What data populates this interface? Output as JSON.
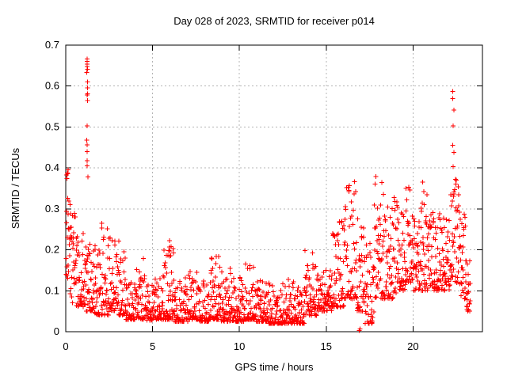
{
  "page": {
    "background": "#ffffff"
  },
  "chart_data": {
    "type": "scatter",
    "title": "Day 028 of 2023, SRMTID for receiver p014",
    "xlabel": "GPS time / hours",
    "ylabel": "SRMTID / TECUs",
    "xlim": [
      0,
      24
    ],
    "ylim": [
      0,
      0.7
    ],
    "xticks": [
      0,
      5,
      10,
      15,
      20
    ],
    "yticks": [
      0,
      0.1,
      0.2,
      0.3,
      0.4,
      0.5,
      0.6,
      0.7
    ],
    "grid": true,
    "legend": "none",
    "marker": "plus",
    "marker_size_px": 7,
    "colors": {
      "points": "#ff0000",
      "grid": "#b4b4b4",
      "frame": "#000000",
      "text": "#000000"
    },
    "series_name": "SRMTID",
    "seed": 20230128,
    "density_bins": [
      [
        0.02,
        0.15,
        0.12,
        0.4,
        16,
        1.1
      ],
      [
        0.15,
        0.55,
        0.07,
        0.32,
        34,
        1.3
      ],
      [
        0.55,
        1.05,
        0.06,
        0.25,
        42,
        1.6
      ],
      [
        1.05,
        1.55,
        0.05,
        0.22,
        42,
        1.7
      ],
      [
        1.55,
        2.05,
        0.04,
        0.21,
        42,
        1.8
      ],
      [
        2.05,
        2.55,
        0.04,
        0.27,
        42,
        2.0
      ],
      [
        2.55,
        3.05,
        0.05,
        0.23,
        42,
        1.9
      ],
      [
        3.05,
        3.45,
        0.04,
        0.2,
        34,
        2.2
      ],
      [
        3.45,
        4.05,
        0.03,
        0.13,
        50,
        2.2
      ],
      [
        4.05,
        4.55,
        0.03,
        0.18,
        42,
        2.4
      ],
      [
        4.55,
        5.05,
        0.028,
        0.12,
        42,
        2.4
      ],
      [
        5.05,
        5.65,
        0.03,
        0.14,
        50,
        2.5
      ],
      [
        5.65,
        6.25,
        0.03,
        0.21,
        50,
        2.6
      ],
      [
        6.25,
        7.05,
        0.025,
        0.14,
        66,
        2.6
      ],
      [
        7.05,
        7.65,
        0.03,
        0.16,
        50,
        2.5
      ],
      [
        7.65,
        8.25,
        0.025,
        0.13,
        50,
        2.6
      ],
      [
        8.25,
        8.85,
        0.03,
        0.19,
        50,
        2.6
      ],
      [
        8.85,
        9.65,
        0.025,
        0.16,
        66,
        2.6
      ],
      [
        9.65,
        10.25,
        0.025,
        0.14,
        50,
        2.6
      ],
      [
        10.25,
        10.95,
        0.03,
        0.18,
        58,
        2.6
      ],
      [
        10.95,
        11.65,
        0.025,
        0.14,
        58,
        2.6
      ],
      [
        11.65,
        12.45,
        0.02,
        0.12,
        66,
        2.6
      ],
      [
        12.45,
        13.15,
        0.02,
        0.14,
        58,
        2.6
      ],
      [
        13.15,
        13.75,
        0.02,
        0.11,
        50,
        2.6
      ],
      [
        13.75,
        14.45,
        0.04,
        0.2,
        58,
        2.4
      ],
      [
        14.45,
        15.35,
        0.05,
        0.15,
        74,
        2.2
      ],
      [
        15.35,
        16.05,
        0.06,
        0.28,
        58,
        1.9
      ],
      [
        16.05,
        16.75,
        0.08,
        0.37,
        58,
        1.8
      ],
      [
        16.75,
        17.25,
        0.05,
        0.3,
        42,
        1.9
      ],
      [
        17.25,
        17.75,
        0.02,
        0.22,
        42,
        2.0
      ],
      [
        17.75,
        18.35,
        0.08,
        0.38,
        50,
        1.8
      ],
      [
        18.35,
        19.05,
        0.08,
        0.33,
        58,
        1.7
      ],
      [
        19.05,
        19.55,
        0.1,
        0.32,
        42,
        1.5
      ],
      [
        19.55,
        19.95,
        0.12,
        0.4,
        34,
        1.5
      ],
      [
        19.95,
        20.45,
        0.1,
        0.3,
        42,
        1.5
      ],
      [
        20.45,
        20.95,
        0.1,
        0.37,
        42,
        1.5
      ],
      [
        20.95,
        21.55,
        0.1,
        0.3,
        50,
        1.5
      ],
      [
        21.55,
        22.15,
        0.1,
        0.28,
        50,
        1.5
      ],
      [
        22.15,
        22.65,
        0.12,
        0.38,
        42,
        1.4
      ],
      [
        22.65,
        23.05,
        0.08,
        0.3,
        34,
        1.6
      ],
      [
        23.05,
        23.3,
        0.05,
        0.18,
        22,
        1.8
      ]
    ],
    "outlier_columns": [
      {
        "t": 1.23,
        "values": [
          0.378,
          0.405,
          0.418,
          0.44,
          0.456,
          0.468,
          0.503,
          0.565,
          0.578,
          0.581,
          0.596,
          0.61,
          0.633,
          0.641,
          0.648,
          0.654,
          0.66,
          0.666
        ]
      },
      {
        "t": 5.95,
        "values": [
          0.185,
          0.198,
          0.207,
          0.222
        ]
      },
      {
        "t": 16.93,
        "values": [
          0.003,
          0.007
        ]
      },
      {
        "t": 22.33,
        "values": [
          0.403,
          0.438,
          0.455,
          0.503,
          0.541,
          0.569,
          0.587
        ]
      }
    ]
  }
}
